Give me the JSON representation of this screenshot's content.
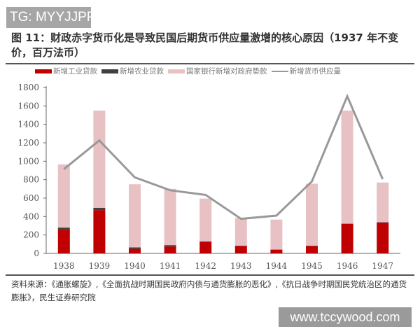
{
  "watermark_top": "TG: MYYJJPP",
  "watermark_bottom": "www.tccywood.com",
  "source": "资料来源：《通胀螺旋》,《全面抗战时期国民政府内债与通货膨胀的恶化》,《抗日战争时期国民党统治区的通货膨胀》，民生证券研究院",
  "chart_data": {
    "type": "bar",
    "title": "图 11：财政赤字货币化是导致民国后期货币供应量激增的核心原因（1937 年不变价，百万法币）",
    "xlabel": "",
    "ylabel": "",
    "categories": [
      "1938",
      "1939",
      "1940",
      "1941",
      "1942",
      "1943",
      "1944",
      "1945",
      "1946",
      "1947"
    ],
    "ylim": [
      0,
      1800
    ],
    "yticks": [
      "0",
      "200",
      "400",
      "600",
      "800",
      "1000",
      "1200",
      "1400",
      "1600",
      "1800"
    ],
    "grid": false,
    "legend_position": "top",
    "series": [
      {
        "name": "新增工业贷款",
        "kind": "stacked-bar",
        "color": "#c00000",
        "values": [
          255,
          470,
          50,
          75,
          125,
          80,
          40,
          80,
          320,
          335
        ]
      },
      {
        "name": "新增农业贷款",
        "kind": "stacked-bar",
        "color": "#404040",
        "values": [
          25,
          25,
          15,
          15,
          5,
          3,
          3,
          3,
          3,
          3
        ]
      },
      {
        "name": "国家银行新增对政府垫款",
        "kind": "stacked-bar",
        "color": "#e8c1c4",
        "values": [
          686,
          1055,
          685,
          610,
          465,
          302,
          324,
          673,
          1227,
          431
        ]
      },
      {
        "name": "新增货币供应量",
        "kind": "line",
        "color": "#999999",
        "values": [
          915,
          1225,
          825,
          685,
          635,
          375,
          410,
          780,
          1705,
          805
        ]
      }
    ]
  }
}
